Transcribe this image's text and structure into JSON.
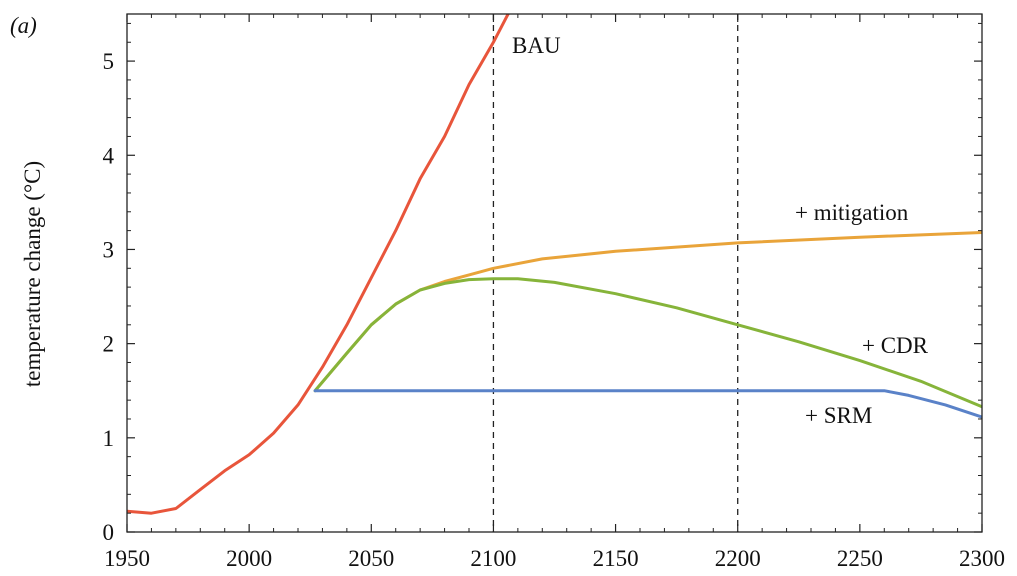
{
  "chart_data": {
    "type": "line",
    "panel_label": "(a)",
    "title": "",
    "xlabel": "",
    "ylabel": "temperature change (°C)",
    "xlim": [
      1950,
      2300
    ],
    "ylim": [
      0,
      5.5
    ],
    "xticks": [
      1950,
      2000,
      2050,
      2100,
      2150,
      2200,
      2250,
      2300
    ],
    "yticks": [
      0,
      1,
      2,
      3,
      4,
      5
    ],
    "reference_lines_x": [
      2100,
      2200
    ],
    "grid": false,
    "series": [
      {
        "name": "BAU",
        "color": "#e8553b",
        "x": [
          1950,
          1960,
          1970,
          1980,
          1990,
          2000,
          2010,
          2020,
          2030,
          2040,
          2050,
          2060,
          2070,
          2080,
          2090,
          2100,
          2106
        ],
        "y": [
          0.22,
          0.2,
          0.25,
          0.45,
          0.65,
          0.82,
          1.05,
          1.35,
          1.75,
          2.2,
          2.7,
          3.2,
          3.75,
          4.2,
          4.75,
          5.2,
          5.5
        ]
      },
      {
        "name": "+ mitigation",
        "color": "#e9a43a",
        "x": [
          2027,
          2040,
          2050,
          2060,
          2070,
          2080,
          2090,
          2100,
          2120,
          2150,
          2200,
          2250,
          2300
        ],
        "y": [
          1.5,
          1.9,
          2.2,
          2.42,
          2.57,
          2.66,
          2.73,
          2.8,
          2.9,
          2.98,
          3.07,
          3.13,
          3.18
        ]
      },
      {
        "name": "+ CDR",
        "color": "#86b43a",
        "x": [
          2027,
          2040,
          2050,
          2060,
          2070,
          2080,
          2090,
          2100,
          2110,
          2125,
          2150,
          2175,
          2200,
          2225,
          2250,
          2275,
          2300
        ],
        "y": [
          1.5,
          1.9,
          2.2,
          2.42,
          2.57,
          2.64,
          2.68,
          2.69,
          2.69,
          2.65,
          2.53,
          2.38,
          2.2,
          2.02,
          1.82,
          1.6,
          1.33
        ]
      },
      {
        "name": "+ SRM",
        "color": "#5a82c8",
        "x": [
          2027,
          2030,
          2100,
          2200,
          2260,
          2270,
          2285,
          2300
        ],
        "y": [
          1.5,
          1.5,
          1.5,
          1.5,
          1.5,
          1.45,
          1.35,
          1.22
        ]
      }
    ]
  }
}
